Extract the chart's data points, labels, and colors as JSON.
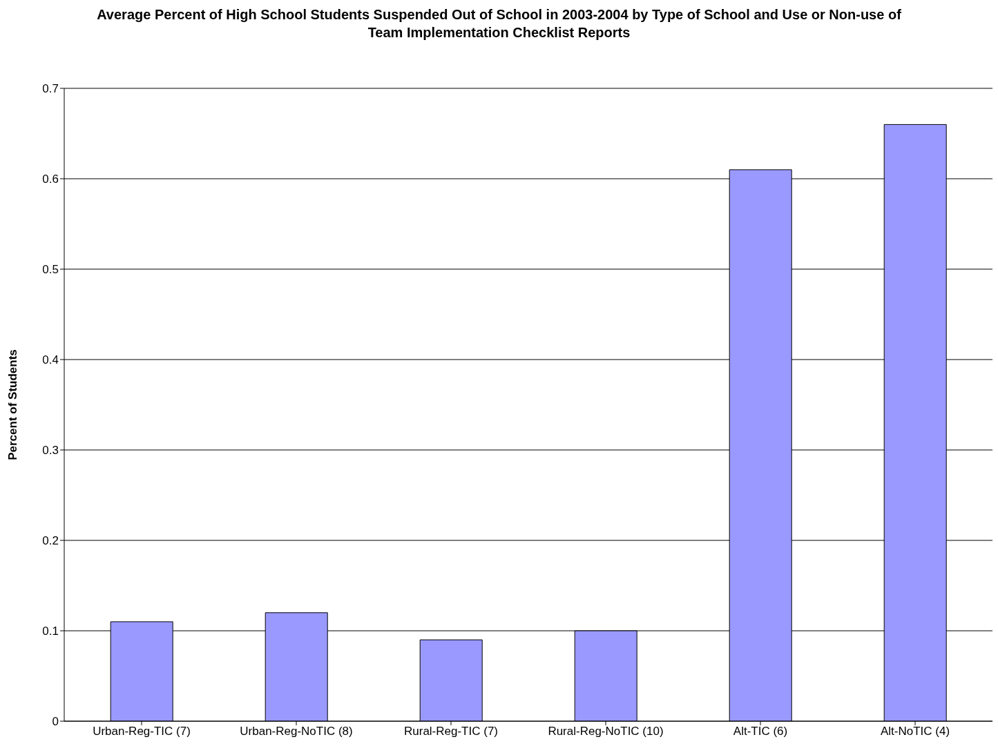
{
  "chart_data": {
    "type": "bar",
    "title": "Average Percent of High School Students Suspended Out of School in 2003-2004 by Type of School and Use or Non-use of Team Implementation Checklist Reports",
    "ylabel": "Percent of Students",
    "categories": [
      "Urban-Reg-TIC (7)",
      "Urban-Reg-NoTIC (8)",
      "Rural-Reg-TIC (7)",
      "Rural-Reg-NoTIC (10)",
      "Alt-TIC (6)",
      "Alt-NoTIC (4)"
    ],
    "values": [
      0.11,
      0.12,
      0.09,
      0.1,
      0.61,
      0.66
    ],
    "color": "#9999ff",
    "ylim": [
      0,
      0.7
    ],
    "yticks": [
      0,
      0.1,
      0.2,
      0.3,
      0.4,
      0.5,
      0.6,
      0.7
    ],
    "grid": "y"
  }
}
